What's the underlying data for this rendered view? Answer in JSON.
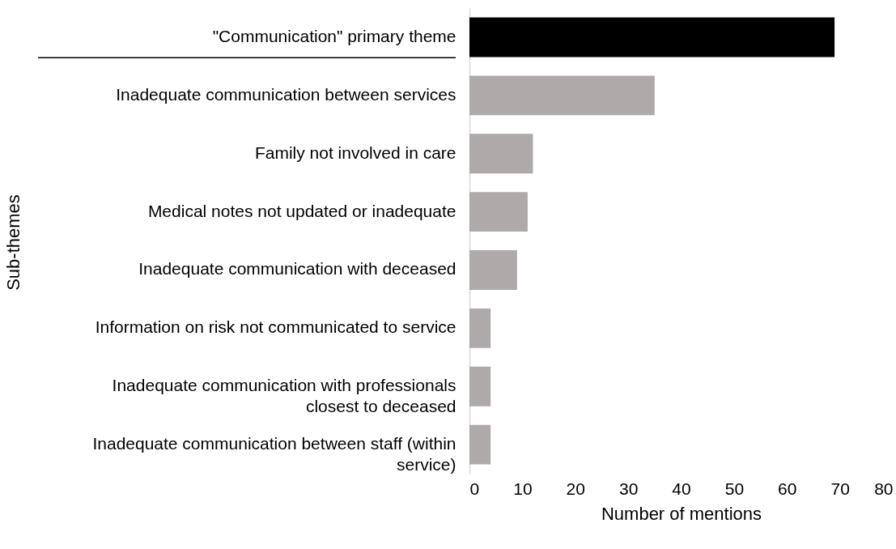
{
  "chart_data": {
    "type": "bar",
    "orientation": "horizontal",
    "categories": [
      "\"Communication\" primary theme",
      "Inadequate communication between services",
      "Family not involved in care",
      "Medical notes not updated or inadequate",
      "Inadequate communication with deceased",
      "Information on risk not communicated to service",
      "Inadequate communication with professionals closest to deceased",
      "Inadequate communication between staff (within service)"
    ],
    "values": [
      69,
      35,
      12,
      11,
      9,
      4,
      4,
      4
    ],
    "colors": [
      "#000000",
      "#aeaaaa",
      "#aeaaaa",
      "#aeaaaa",
      "#aeaaaa",
      "#aeaaaa",
      "#aeaaaa",
      "#aeaaaa"
    ],
    "xlim": [
      0,
      80
    ],
    "xticks": [
      0,
      10,
      20,
      30,
      40,
      50,
      60,
      70,
      80
    ],
    "xlabel": "Number of mentions",
    "ylabel": "Sub-themes",
    "grid": false
  }
}
